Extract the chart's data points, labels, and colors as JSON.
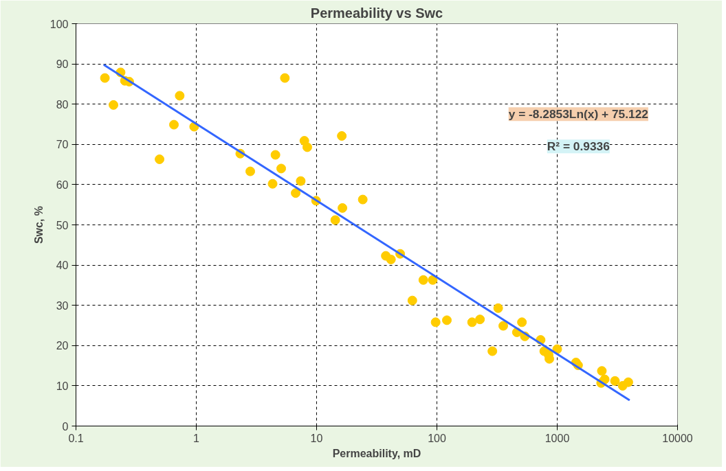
{
  "chart_data": {
    "type": "scatter",
    "title": "Permeability vs Swc",
    "xlabel": "Permeability, mD",
    "ylabel": "Swc, %",
    "log": "x",
    "grid": true,
    "xlim": [
      0.1,
      10000
    ],
    "xticks": [
      0.1,
      1,
      10,
      100,
      1000,
      10000
    ],
    "ylim": [
      0,
      100
    ],
    "yticks": [
      0,
      10,
      20,
      30,
      40,
      50,
      60,
      70,
      80,
      90,
      100
    ],
    "annotations": [
      "y = -8.2853Ln(x) + 75.122",
      "R² = 0.9336"
    ],
    "series": [
      {
        "marker": "circle",
        "color": "#ffcc00",
        "x": [
          0.174,
          0.205,
          0.235,
          0.255,
          0.277,
          0.495,
          0.652,
          0.728,
          0.96,
          2.32,
          2.81,
          4.31,
          4.55,
          5.08,
          5.45,
          6.7,
          7.38,
          7.91,
          8.37,
          9.9,
          14.3,
          16.2,
          16.4,
          24.2,
          37.6,
          41.5,
          49.5,
          62.5,
          77.1,
          92.3,
          97.6,
          121,
          196,
          228,
          289,
          323,
          356,
          462,
          509,
          538,
          728,
          780,
          848,
          860,
          1000,
          1432,
          1490,
          2317,
          2350,
          2480,
          3020,
          3500,
          3900
        ],
        "values": [
          86.5,
          79.8,
          87.9,
          85.8,
          85.6,
          66.3,
          74.9,
          82.1,
          74.4,
          67.7,
          63.3,
          60.2,
          67.4,
          64.0,
          86.5,
          57.9,
          60.9,
          70.9,
          69.3,
          56.0,
          51.2,
          72.1,
          54.2,
          56.3,
          42.3,
          41.4,
          42.8,
          31.2,
          36.3,
          36.3,
          25.8,
          26.3,
          25.8,
          26.5,
          18.6,
          29.3,
          24.9,
          23.3,
          25.8,
          22.3,
          21.4,
          18.6,
          17.7,
          16.7,
          19.1,
          15.8,
          15.1,
          10.7,
          13.7,
          11.6,
          11.2,
          10.0,
          10.9
        ]
      },
      {
        "type": "line",
        "marker": "none",
        "line_style": "solid",
        "color": "#3366ff",
        "x": [
          0.17,
          4000
        ],
        "values": [
          89.8,
          6.4
        ]
      }
    ]
  }
}
